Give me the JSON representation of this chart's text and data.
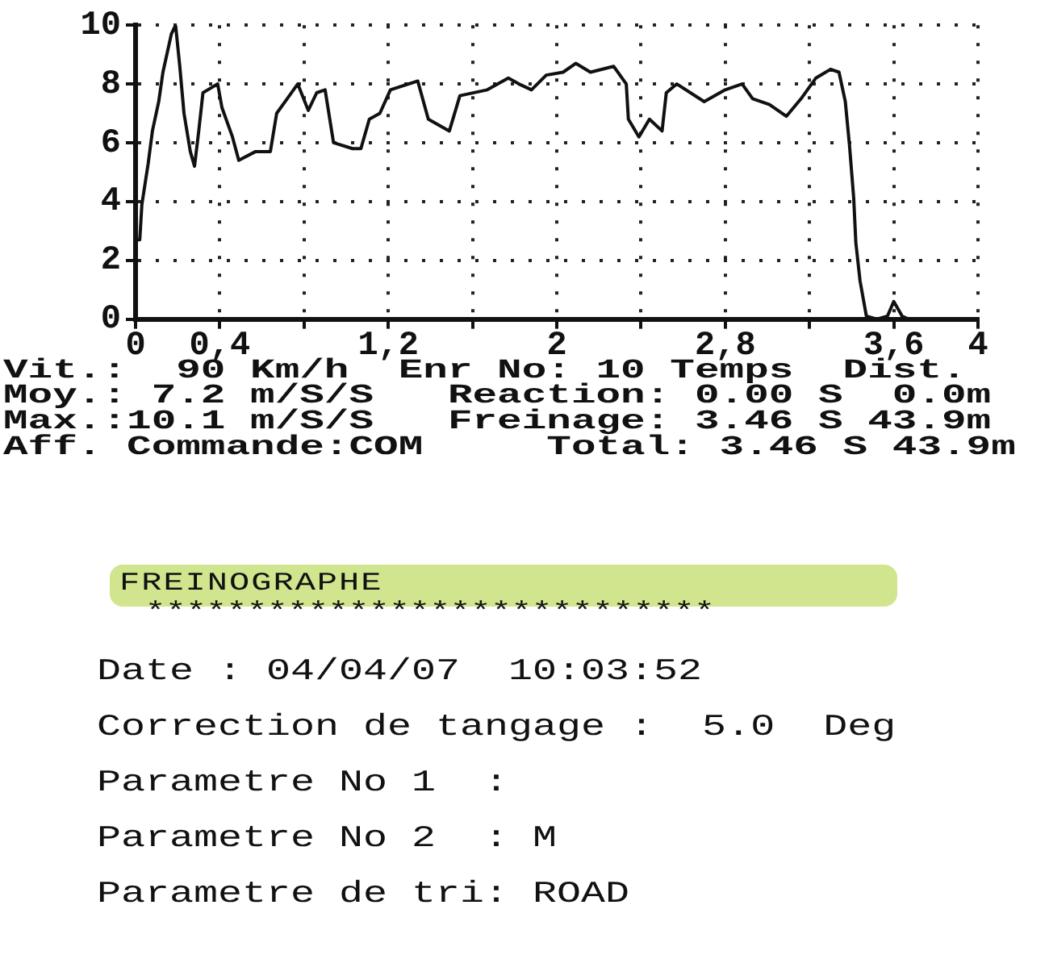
{
  "chart_data": {
    "type": "line",
    "x": [
      0,
      0.02,
      0.03,
      0.06,
      0.08,
      0.11,
      0.13,
      0.17,
      0.19,
      0.21,
      0.23,
      0.26,
      0.28,
      0.3,
      0.32,
      0.39,
      0.41,
      0.46,
      0.49,
      0.57,
      0.64,
      0.67,
      0.72,
      0.77,
      0.82,
      0.86,
      0.9,
      0.94,
      1.03,
      1.07,
      1.11,
      1.16,
      1.21,
      1.34,
      1.39,
      1.49,
      1.54,
      1.67,
      1.77,
      1.82,
      1.88,
      1.95,
      2.03,
      2.09,
      2.16,
      2.27,
      2.33,
      2.34,
      2.39,
      2.44,
      2.5,
      2.52,
      2.57,
      2.7,
      2.8,
      2.88,
      2.93,
      3.01,
      3.09,
      3.16,
      3.23,
      3.3,
      3.34,
      3.37,
      3.39,
      3.41,
      3.42,
      3.44,
      3.47,
      3.52,
      3.57,
      3.6,
      3.64,
      3.67
    ],
    "series": [
      {
        "color": "#111111",
        "values": [
          2.7,
          2.7,
          3.9,
          5.3,
          6.4,
          7.4,
          8.4,
          9.7,
          10.0,
          8.6,
          7.0,
          5.7,
          5.2,
          6.4,
          7.7,
          8.0,
          7.2,
          6.2,
          5.4,
          5.7,
          5.7,
          7.0,
          7.5,
          8.0,
          7.1,
          7.7,
          7.8,
          6.0,
          5.8,
          5.8,
          6.8,
          7.0,
          7.8,
          8.1,
          6.8,
          6.4,
          7.6,
          7.8,
          8.2,
          8.0,
          7.8,
          8.3,
          8.4,
          8.7,
          8.4,
          8.6,
          8.0,
          6.8,
          6.2,
          6.8,
          6.4,
          7.7,
          8.0,
          7.4,
          7.8,
          8.0,
          7.5,
          7.3,
          6.9,
          7.5,
          8.2,
          8.5,
          8.4,
          7.4,
          5.9,
          4.1,
          2.6,
          1.3,
          0.1,
          0,
          0.1,
          0.6,
          0.1,
          0
        ]
      }
    ],
    "xlim": [
      0,
      4
    ],
    "ylim": [
      0,
      10
    ],
    "xticks": [
      0,
      {
        "value": 0.4,
        "label": "0,4"
      },
      {
        "value": 0.8,
        "label": null
      },
      {
        "value": 1.2,
        "label": "1,2"
      },
      {
        "value": 1.6,
        "label": null
      },
      2,
      {
        "value": 2.4,
        "label": null
      },
      {
        "value": 2.8,
        "label": "2,8"
      },
      {
        "value": 3.2,
        "label": null
      },
      {
        "value": 3.6,
        "label": "3,6"
      },
      4
    ],
    "yticks": [
      0,
      2,
      4,
      6,
      8,
      10
    ],
    "grid": true,
    "legend": false,
    "marker": "none",
    "line_style": "solid",
    "annotations": [
      "Vit.:  90 Km/h  Enr No: 10 Temps  Dist.",
      "Moy.: 7.2 m/S/S   Reaction: 0.00 S  0.0m",
      "Max.:10.1 m/S/S   Freinage: 3.46 S 43.9m",
      "Aff. Commande:COM     Total: 3.46 S 43.9m",
      "FREINOGRAPHE",
      "****************************",
      "Date : 04/04/07  10:03:52",
      "Correction de tangage :  5.0  Deg",
      "Parametre No 1  :",
      "Parametre No 2  : M",
      "Parametre de tri: ROAD"
    ]
  }
}
